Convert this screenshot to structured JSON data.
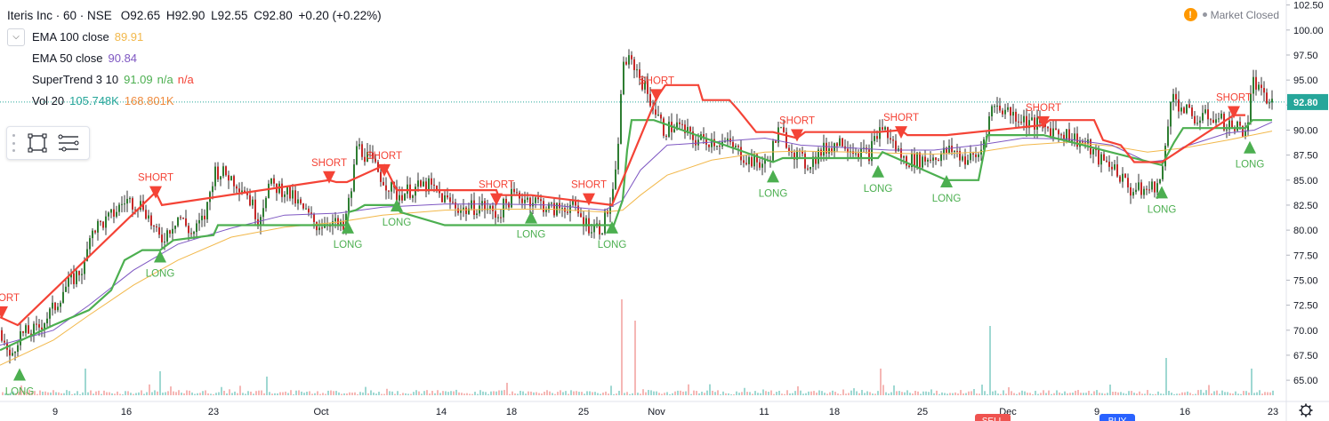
{
  "header": {
    "symbol_title": "Iteris Inc · 60 · NSE",
    "ohlc": {
      "open": "O92.65",
      "high": "H92.90",
      "low": "L92.55",
      "close": "C92.80",
      "change": "+0.20 (+0.22%)"
    },
    "status": "Market Closed"
  },
  "indicators": {
    "ema100": {
      "label": "EMA 100 close",
      "value": "89.91",
      "color": "#f2b84b"
    },
    "ema50": {
      "label": "EMA 50 close",
      "value": "90.84",
      "color": "#7e57c2"
    },
    "supertrend": {
      "label": "SuperTrend 3 10",
      "value": "91.09",
      "na1": "n/a",
      "na2": "n/a",
      "up_color": "#4caf50",
      "down_color": "#f44336"
    },
    "volume": {
      "label": "Vol 20",
      "value1": "105.748K",
      "value2": "168.801K",
      "color1": "#26a69a",
      "color2": "#ef8a3d"
    }
  },
  "price_badge": "92.80",
  "chart_data": {
    "type": "candlestick",
    "y_ticks": [
      "102.50",
      "100.00",
      "97.50",
      "95.00",
      "92.50",
      "90.00",
      "87.50",
      "85.00",
      "82.50",
      "80.00",
      "77.50",
      "75.00",
      "72.50",
      "70.00",
      "67.50",
      "65.00"
    ],
    "ylim": [
      63.5,
      103
    ],
    "x_ticks": [
      "9",
      "16",
      "23",
      "Oct",
      "14",
      "18",
      "25",
      "Nov",
      "11",
      "18",
      "25",
      "Dec",
      "9",
      "16",
      "23"
    ],
    "last_price": 92.8,
    "signals": [
      {
        "type": "SHORT",
        "x": 2,
        "price": 71.5
      },
      {
        "type": "LONG",
        "x": 22,
        "price": 65.5
      },
      {
        "type": "SHORT",
        "x": 175,
        "price": 83.5
      },
      {
        "type": "LONG",
        "x": 180,
        "price": 77.3
      },
      {
        "type": "SHORT",
        "x": 370,
        "price": 85.0
      },
      {
        "type": "LONG",
        "x": 391,
        "price": 80.2
      },
      {
        "type": "SHORT",
        "x": 432,
        "price": 85.7
      },
      {
        "type": "LONG",
        "x": 446,
        "price": 82.4
      },
      {
        "type": "SHORT",
        "x": 558,
        "price": 82.8
      },
      {
        "type": "LONG",
        "x": 597,
        "price": 81.2
      },
      {
        "type": "SHORT",
        "x": 662,
        "price": 82.8
      },
      {
        "type": "LONG",
        "x": 688,
        "price": 80.2
      },
      {
        "type": "SHORT",
        "x": 738,
        "price": 93.2
      },
      {
        "type": "LONG",
        "x": 869,
        "price": 85.3
      },
      {
        "type": "SHORT",
        "x": 896,
        "price": 89.2
      },
      {
        "type": "LONG",
        "x": 987,
        "price": 85.8
      },
      {
        "type": "SHORT",
        "x": 1013,
        "price": 89.5
      },
      {
        "type": "LONG",
        "x": 1064,
        "price": 84.8
      },
      {
        "type": "SHORT",
        "x": 1173,
        "price": 90.5
      },
      {
        "type": "LONG",
        "x": 1306,
        "price": 83.7
      },
      {
        "type": "SHORT",
        "x": 1387,
        "price": 91.5
      },
      {
        "type": "LONG",
        "x": 1405,
        "price": 88.2
      }
    ],
    "supertrend_up": [
      [
        0,
        68.0
      ],
      [
        60,
        70.5
      ],
      [
        100,
        72.0
      ],
      [
        125,
        74.0
      ],
      [
        140,
        77.0
      ],
      [
        160,
        78.0
      ],
      [
        180,
        78.0
      ],
      [
        195,
        79.0
      ],
      [
        240,
        79.5
      ],
      [
        245,
        80.5
      ],
      [
        390,
        80.5
      ],
      [
        392,
        81.8
      ],
      [
        400,
        82.0
      ],
      [
        410,
        82.5
      ],
      [
        445,
        82.5
      ],
      [
        450,
        81.8
      ],
      [
        500,
        80.5
      ],
      [
        690,
        80.5
      ],
      [
        700,
        83.0
      ],
      [
        705,
        88.0
      ],
      [
        710,
        91.0
      ],
      [
        735,
        91.0
      ],
      [
        869,
        86.8
      ],
      [
        880,
        87.2
      ],
      [
        987,
        87.2
      ],
      [
        992,
        87.8
      ],
      [
        1064,
        85.0
      ],
      [
        1100,
        85.0
      ],
      [
        1110,
        89.5
      ],
      [
        1173,
        89.5
      ],
      [
        1306,
        86.5
      ],
      [
        1320,
        88.8
      ],
      [
        1330,
        90.2
      ],
      [
        1400,
        90.2
      ],
      [
        1408,
        91.0
      ],
      [
        1430,
        91.0
      ]
    ],
    "supertrend_down": [
      [
        0,
        71.3
      ],
      [
        20,
        70.5
      ],
      [
        175,
        83.8
      ],
      [
        182,
        82.5
      ],
      [
        370,
        85.0
      ],
      [
        378,
        84.8
      ],
      [
        390,
        84.8
      ],
      [
        432,
        86.5
      ],
      [
        446,
        84.0
      ],
      [
        558,
        84.0
      ],
      [
        560,
        83.5
      ],
      [
        597,
        83.5
      ],
      [
        662,
        82.8
      ],
      [
        688,
        82.5
      ],
      [
        738,
        93.2
      ],
      [
        748,
        94.5
      ],
      [
        785,
        94.5
      ],
      [
        790,
        93.0
      ],
      [
        820,
        93.0
      ],
      [
        830,
        92.0
      ],
      [
        850,
        89.8
      ],
      [
        869,
        89.8
      ],
      [
        896,
        89.2
      ],
      [
        905,
        89.8
      ],
      [
        987,
        89.8
      ],
      [
        1013,
        90.0
      ],
      [
        1020,
        89.5
      ],
      [
        1064,
        89.5
      ],
      [
        1173,
        90.5
      ],
      [
        1180,
        91.0
      ],
      [
        1230,
        91.0
      ],
      [
        1240,
        89.0
      ],
      [
        1260,
        88.5
      ],
      [
        1275,
        86.8
      ],
      [
        1306,
        86.8
      ],
      [
        1387,
        91.5
      ],
      [
        1400,
        91.5
      ]
    ],
    "ema50": [
      [
        0,
        68.5
      ],
      [
        60,
        70.0
      ],
      [
        100,
        72.5
      ],
      [
        150,
        76.0
      ],
      [
        200,
        78.6
      ],
      [
        260,
        80.2
      ],
      [
        320,
        81.5
      ],
      [
        380,
        81.7
      ],
      [
        430,
        82.3
      ],
      [
        500,
        82.6
      ],
      [
        560,
        82.6
      ],
      [
        620,
        82.5
      ],
      [
        680,
        82.0
      ],
      [
        700,
        83.0
      ],
      [
        720,
        86.0
      ],
      [
        750,
        88.5
      ],
      [
        800,
        88.8
      ],
      [
        860,
        89.2
      ],
      [
        900,
        88.5
      ],
      [
        960,
        88.2
      ],
      [
        1000,
        88.0
      ],
      [
        1050,
        88.0
      ],
      [
        1100,
        88.5
      ],
      [
        1150,
        89.2
      ],
      [
        1200,
        89.1
      ],
      [
        1250,
        88.5
      ],
      [
        1290,
        86.8
      ],
      [
        1310,
        87.0
      ],
      [
        1330,
        88.3
      ],
      [
        1380,
        89.7
      ],
      [
        1410,
        90.0
      ],
      [
        1430,
        90.8
      ]
    ],
    "ema100": [
      [
        0,
        66.5
      ],
      [
        60,
        69.0
      ],
      [
        100,
        71.5
      ],
      [
        150,
        74.5
      ],
      [
        200,
        77.0
      ],
      [
        260,
        79.3
      ],
      [
        320,
        80.3
      ],
      [
        380,
        80.8
      ],
      [
        430,
        81.5
      ],
      [
        500,
        82.0
      ],
      [
        560,
        82.1
      ],
      [
        620,
        82.1
      ],
      [
        680,
        81.8
      ],
      [
        700,
        82.0
      ],
      [
        720,
        83.5
      ],
      [
        750,
        85.5
      ],
      [
        800,
        87.0
      ],
      [
        860,
        87.8
      ],
      [
        900,
        87.9
      ],
      [
        960,
        87.8
      ],
      [
        1000,
        87.7
      ],
      [
        1050,
        87.6
      ],
      [
        1100,
        87.8
      ],
      [
        1150,
        88.5
      ],
      [
        1200,
        88.8
      ],
      [
        1250,
        88.4
      ],
      [
        1290,
        87.8
      ],
      [
        1330,
        88.2
      ],
      [
        1380,
        89.0
      ],
      [
        1430,
        89.9
      ]
    ],
    "close_path": [
      [
        0,
        70.0
      ],
      [
        10,
        67.0
      ],
      [
        20,
        69.5
      ],
      [
        40,
        70.0
      ],
      [
        62,
        72.5
      ],
      [
        70,
        74.0
      ],
      [
        95,
        76.5
      ],
      [
        100,
        80.0
      ],
      [
        120,
        81.0
      ],
      [
        140,
        83.0
      ],
      [
        160,
        82.5
      ],
      [
        175,
        79.5
      ],
      [
        180,
        79.0
      ],
      [
        200,
        81.5
      ],
      [
        215,
        79.5
      ],
      [
        230,
        81.5
      ],
      [
        240,
        86.0
      ],
      [
        255,
        85.5
      ],
      [
        275,
        84.0
      ],
      [
        290,
        81.0
      ],
      [
        300,
        84.5
      ],
      [
        320,
        84.0
      ],
      [
        340,
        82.0
      ],
      [
        355,
        80.5
      ],
      [
        370,
        81.0
      ],
      [
        385,
        80.0
      ],
      [
        395,
        84.5
      ],
      [
        400,
        88.5
      ],
      [
        415,
        87.0
      ],
      [
        430,
        85.0
      ],
      [
        445,
        83.5
      ],
      [
        460,
        84.0
      ],
      [
        480,
        84.5
      ],
      [
        500,
        83.0
      ],
      [
        520,
        82.0
      ],
      [
        540,
        82.5
      ],
      [
        558,
        81.5
      ],
      [
        575,
        83.5
      ],
      [
        600,
        83.0
      ],
      [
        620,
        82.0
      ],
      [
        640,
        82.5
      ],
      [
        660,
        80.5
      ],
      [
        675,
        80.2
      ],
      [
        690,
        84.0
      ],
      [
        700,
        97.0
      ],
      [
        712,
        96.5
      ],
      [
        725,
        94.0
      ],
      [
        735,
        92.0
      ],
      [
        745,
        90.0
      ],
      [
        760,
        90.5
      ],
      [
        780,
        89.0
      ],
      [
        800,
        89.0
      ],
      [
        820,
        88.5
      ],
      [
        840,
        87.0
      ],
      [
        860,
        86.5
      ],
      [
        875,
        90.0
      ],
      [
        890,
        88.0
      ],
      [
        905,
        86.5
      ],
      [
        925,
        88.0
      ],
      [
        945,
        89.0
      ],
      [
        960,
        88.0
      ],
      [
        975,
        87.5
      ],
      [
        990,
        90.5
      ],
      [
        1000,
        89.0
      ],
      [
        1015,
        87.0
      ],
      [
        1035,
        87.0
      ],
      [
        1055,
        87.5
      ],
      [
        1070,
        88.0
      ],
      [
        1085,
        87.0
      ],
      [
        1100,
        87.5
      ],
      [
        1115,
        92.5
      ],
      [
        1130,
        92.0
      ],
      [
        1150,
        91.0
      ],
      [
        1165,
        90.5
      ],
      [
        1185,
        90.0
      ],
      [
        1200,
        89.5
      ],
      [
        1220,
        88.5
      ],
      [
        1235,
        87.0
      ],
      [
        1250,
        86.5
      ],
      [
        1270,
        84.0
      ],
      [
        1290,
        84.0
      ],
      [
        1305,
        85.0
      ],
      [
        1315,
        93.5
      ],
      [
        1330,
        92.0
      ],
      [
        1345,
        91.0
      ],
      [
        1360,
        91.5
      ],
      [
        1380,
        90.5
      ],
      [
        1400,
        90.0
      ],
      [
        1408,
        95.0
      ],
      [
        1420,
        93.0
      ],
      [
        1430,
        92.8
      ]
    ],
    "volume_spikes": [
      [
        96,
        5
      ],
      [
        180,
        4.5
      ],
      [
        300,
        3.5
      ],
      [
        1112,
        13
      ],
      [
        1310,
        7
      ],
      [
        990,
        5
      ],
      [
        698,
        18
      ],
      [
        714,
        14
      ],
      [
        1405,
        5
      ]
    ],
    "grid": false,
    "colors": {
      "up": "#26a69a",
      "down": "#ef5350",
      "last_line": "#26a69a"
    }
  },
  "toolbar": {
    "rectangle_icon": "rectangle-icon",
    "lines_icon": "horizontal-lines-icon"
  },
  "bottom_buttons": {
    "sell": "SELL",
    "buy": "BUY"
  }
}
